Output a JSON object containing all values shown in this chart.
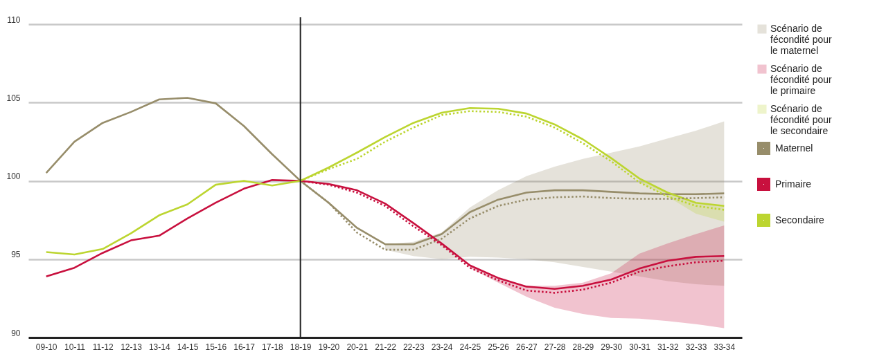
{
  "chart_data": {
    "type": "line",
    "categories": [
      "09-10",
      "10-11",
      "11-12",
      "12-13",
      "13-14",
      "14-15",
      "15-16",
      "16-17",
      "17-18",
      "18-19",
      "19-20",
      "20-21",
      "21-22",
      "22-23",
      "23-24",
      "24-25",
      "25-26",
      "26-27",
      "27-28",
      "28-29",
      "29-30",
      "30-31",
      "31-32",
      "32-33",
      "33-34"
    ],
    "ylim": [
      90,
      110
    ],
    "yticks": [
      90,
      95,
      100,
      105,
      110
    ],
    "grid": "y",
    "legend": "right",
    "ref_lines": [
      {
        "axis": "x",
        "value": "18-19",
        "color": "#222222"
      }
    ],
    "series": [
      {
        "name": "Maternel",
        "color": "#978d6a",
        "values": [
          100.5,
          102.5,
          103.7,
          104.4,
          105.2,
          105.3,
          104.95,
          103.5,
          101.7,
          100,
          98.6,
          97.0,
          95.95,
          95.95,
          96.6,
          98.0,
          98.8,
          99.25,
          99.4,
          99.4,
          99.3,
          99.2,
          99.15,
          99.15,
          99.2
        ]
      },
      {
        "name": "Primaire",
        "color": "#c8103e",
        "values": [
          93.9,
          94.45,
          95.4,
          96.2,
          96.5,
          97.6,
          98.6,
          99.5,
          100.05,
          100,
          99.8,
          99.4,
          98.55,
          97.3,
          96.0,
          94.6,
          93.8,
          93.25,
          93.1,
          93.3,
          93.7,
          94.4,
          94.9,
          95.15,
          95.2
        ]
      },
      {
        "name": "Secondaire",
        "color": "#bcd530",
        "values": [
          95.45,
          95.3,
          95.65,
          96.65,
          97.8,
          98.5,
          99.75,
          100,
          99.7,
          100,
          100.85,
          101.8,
          102.8,
          103.7,
          104.35,
          104.65,
          104.6,
          104.3,
          103.6,
          102.65,
          101.45,
          100.15,
          99.25,
          98.6,
          98.4
        ]
      },
      {
        "name": "Scénario de fécondité pour le maternel",
        "color": "#978d6a",
        "line_style": "dotted",
        "values": [
          null,
          null,
          null,
          null,
          null,
          null,
          null,
          null,
          null,
          100,
          98.6,
          96.7,
          95.6,
          95.6,
          96.3,
          97.6,
          98.4,
          98.8,
          98.95,
          99.0,
          98.9,
          98.85,
          98.85,
          98.9,
          98.95
        ],
        "lower": [
          null,
          null,
          null,
          null,
          null,
          null,
          null,
          null,
          null,
          null,
          null,
          null,
          95.6,
          95.2,
          95.0,
          95.15,
          95.1,
          95.0,
          94.8,
          94.5,
          94.2,
          93.9,
          93.6,
          93.4,
          93.3
        ],
        "upper": [
          null,
          null,
          null,
          null,
          null,
          null,
          null,
          null,
          null,
          null,
          null,
          null,
          95.95,
          96.1,
          96.7,
          98.3,
          99.4,
          100.3,
          100.9,
          101.4,
          101.8,
          102.2,
          102.7,
          103.2,
          103.8
        ]
      },
      {
        "name": "Scénario de fécondité pour le primaire",
        "color": "#c8103e",
        "line_style": "dotted",
        "values": [
          null,
          null,
          null,
          null,
          null,
          null,
          null,
          null,
          null,
          100,
          99.75,
          99.25,
          98.4,
          97.1,
          95.9,
          94.45,
          93.65,
          93.0,
          92.85,
          93.05,
          93.5,
          94.2,
          94.55,
          94.8,
          94.9
        ],
        "lower": [
          null,
          null,
          null,
          null,
          null,
          null,
          null,
          null,
          null,
          null,
          null,
          null,
          null,
          null,
          null,
          94.45,
          93.5,
          92.6,
          91.9,
          91.5,
          91.25,
          91.2,
          91.05,
          90.85,
          90.6
        ],
        "upper": [
          null,
          null,
          null,
          null,
          null,
          null,
          null,
          null,
          null,
          null,
          null,
          null,
          null,
          null,
          null,
          94.6,
          93.8,
          93.3,
          93.3,
          93.5,
          94.1,
          95.35,
          96.0,
          96.6,
          97.15
        ]
      },
      {
        "name": "Scénario de fécondité pour le secondaire",
        "color": "#bcd530",
        "line_style": "dotted",
        "values": [
          null,
          null,
          null,
          null,
          null,
          null,
          null,
          null,
          null,
          100,
          100.75,
          101.4,
          102.5,
          103.4,
          104.2,
          104.45,
          104.4,
          104.1,
          103.4,
          102.4,
          101.25,
          99.9,
          99.0,
          98.4,
          98.15
        ],
        "lower": [
          null,
          null,
          null,
          null,
          null,
          null,
          null,
          null,
          null,
          null,
          null,
          null,
          null,
          null,
          null,
          null,
          null,
          null,
          null,
          null,
          null,
          99.9,
          99.0,
          97.9,
          97.4
        ],
        "upper": [
          null,
          null,
          null,
          null,
          null,
          null,
          null,
          null,
          null,
          null,
          null,
          null,
          null,
          null,
          null,
          null,
          null,
          null,
          null,
          null,
          null,
          100.15,
          99.25,
          98.6,
          98.4
        ]
      }
    ]
  }
}
